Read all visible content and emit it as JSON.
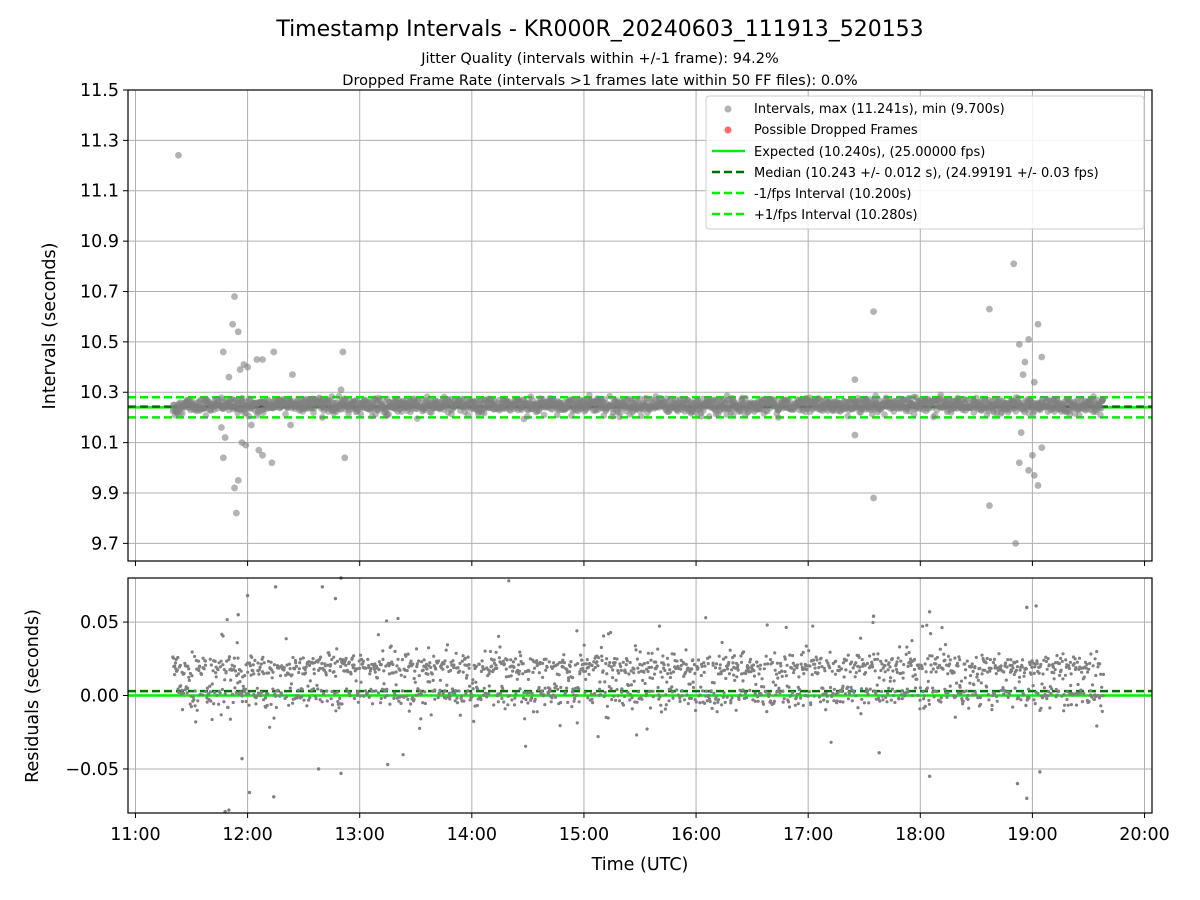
{
  "figure": {
    "title": "Timestamp Intervals - KR000R_20240603_111913_520153",
    "subtitle_line1": "Jitter Quality (intervals within +/-1 frame): 94.2%",
    "subtitle_line2": "Dropped Frame Rate (intervals >1 frames late within 50 FF files): 0.0%",
    "colors": {
      "points": "#808080",
      "dropped": "#ff4d4d",
      "expected": "#00ee00",
      "median": "#007000",
      "interval_lines": "#00ee00",
      "grid": "#b0b0b0"
    }
  },
  "chart_data": [
    {
      "type": "scatter",
      "panel": "intervals",
      "xlabel": "",
      "ylabel": "Intervals (seconds)",
      "x_range": [
        "10:56",
        "20:04"
      ],
      "ylim": [
        9.63,
        11.5
      ],
      "y_ticks": [
        "9.7",
        "9.9",
        "10.1",
        "10.3",
        "10.5",
        "10.7",
        "10.9",
        "11.1",
        "11.3",
        "11.5"
      ],
      "grid": true,
      "legend_placement": "upper right",
      "legend": [
        "Intervals, max (11.241s), min (9.700s)",
        "Possible Dropped Frames",
        "Expected (10.240s), (25.00000 fps)",
        "Median (10.243 +/- 0.012 s), (24.99191 +/- 0.03 fps)",
        "-1/fps Interval (10.200s)",
        "+1/fps Interval (10.280s)"
      ],
      "reference_lines": {
        "expected": 10.24,
        "median": 10.243,
        "minus_one_fps": 10.2,
        "plus_one_fps": 10.28
      },
      "series": [
        {
          "name": "Intervals, max (11.241s), min (9.700s)",
          "band": {
            "x_start": "11:20",
            "x_end": "19:38",
            "center": 10.243,
            "typical_spread": 0.03
          },
          "outliers": [
            {
              "x": "11:23",
              "y": 11.241
            },
            {
              "x": "11:47",
              "y": 10.46
            },
            {
              "x": "11:50",
              "y": 10.36
            },
            {
              "x": "11:52",
              "y": 10.57
            },
            {
              "x": "11:53",
              "y": 10.68
            },
            {
              "x": "11:55",
              "y": 10.54
            },
            {
              "x": "11:56",
              "y": 10.39
            },
            {
              "x": "11:58",
              "y": 10.41
            },
            {
              "x": "12:00",
              "y": 10.4
            },
            {
              "x": "12:05",
              "y": 10.43
            },
            {
              "x": "12:08",
              "y": 10.43
            },
            {
              "x": "12:14",
              "y": 10.46
            },
            {
              "x": "12:24",
              "y": 10.37
            },
            {
              "x": "11:46",
              "y": 10.16
            },
            {
              "x": "11:48",
              "y": 10.12
            },
            {
              "x": "11:47",
              "y": 10.04
            },
            {
              "x": "11:53",
              "y": 9.92
            },
            {
              "x": "11:54",
              "y": 9.82
            },
            {
              "x": "11:55",
              "y": 9.95
            },
            {
              "x": "11:57",
              "y": 10.1
            },
            {
              "x": "11:59",
              "y": 10.09
            },
            {
              "x": "12:02",
              "y": 10.17
            },
            {
              "x": "12:06",
              "y": 10.07
            },
            {
              "x": "12:08",
              "y": 10.05
            },
            {
              "x": "12:13",
              "y": 10.02
            },
            {
              "x": "12:23",
              "y": 10.17
            },
            {
              "x": "12:40",
              "y": 10.2
            },
            {
              "x": "12:51",
              "y": 10.46
            },
            {
              "x": "12:52",
              "y": 10.04
            },
            {
              "x": "12:50",
              "y": 10.31
            },
            {
              "x": "17:25",
              "y": 10.35
            },
            {
              "x": "17:25",
              "y": 10.13
            },
            {
              "x": "17:35",
              "y": 10.62
            },
            {
              "x": "17:35",
              "y": 9.88
            },
            {
              "x": "18:37",
              "y": 10.63
            },
            {
              "x": "18:37",
              "y": 9.85
            },
            {
              "x": "18:50",
              "y": 10.81
            },
            {
              "x": "18:51",
              "y": 9.7
            },
            {
              "x": "18:53",
              "y": 10.49
            },
            {
              "x": "18:58",
              "y": 10.51
            },
            {
              "x": "19:03",
              "y": 10.57
            },
            {
              "x": "19:05",
              "y": 10.44
            },
            {
              "x": "19:01",
              "y": 10.34
            },
            {
              "x": "18:56",
              "y": 10.42
            },
            {
              "x": "18:55",
              "y": 10.37
            },
            {
              "x": "18:53",
              "y": 10.02
            },
            {
              "x": "18:58",
              "y": 9.99
            },
            {
              "x": "19:01",
              "y": 9.97
            },
            {
              "x": "19:03",
              "y": 9.93
            },
            {
              "x": "19:00",
              "y": 10.05
            },
            {
              "x": "19:05",
              "y": 10.08
            },
            {
              "x": "18:54",
              "y": 10.14
            }
          ]
        },
        {
          "name": "Possible Dropped Frames",
          "points": []
        }
      ]
    },
    {
      "type": "scatter",
      "panel": "residuals",
      "xlabel": "Time (UTC)",
      "ylabel": "Residuals (seconds)",
      "x_ticks": [
        "11:00",
        "12:00",
        "13:00",
        "14:00",
        "15:00",
        "16:00",
        "17:00",
        "18:00",
        "19:00",
        "20:00"
      ],
      "ylim": [
        -0.08,
        0.08
      ],
      "y_ticks": [
        "−0.05",
        "0.00",
        "0.05"
      ],
      "grid": true,
      "reference_lines": {
        "expected": 0.0,
        "median": 0.003
      },
      "series": [
        {
          "name": "",
          "bands": [
            {
              "center": 0.02,
              "spread": 0.004,
              "weight": 0.5
            },
            {
              "center": 0.0,
              "spread": 0.004,
              "weight": 0.35
            },
            {
              "center": 0.01,
              "spread": 0.018,
              "weight": 0.15
            }
          ],
          "x_start": "11:20",
          "x_end": "19:38",
          "outliers": [
            {
              "x": "11:55",
              "y": 0.055
            },
            {
              "x": "12:00",
              "y": 0.068
            },
            {
              "x": "12:15",
              "y": 0.074
            },
            {
              "x": "12:40",
              "y": 0.074
            },
            {
              "x": "12:50",
              "y": 0.08
            },
            {
              "x": "12:47",
              "y": 0.066
            },
            {
              "x": "11:57",
              "y": -0.043
            },
            {
              "x": "11:48",
              "y": -0.079
            },
            {
              "x": "11:50",
              "y": -0.078
            },
            {
              "x": "12:01",
              "y": -0.066
            },
            {
              "x": "12:14",
              "y": -0.069
            },
            {
              "x": "12:38",
              "y": -0.05
            },
            {
              "x": "12:50",
              "y": -0.053
            },
            {
              "x": "13:15",
              "y": -0.047
            },
            {
              "x": "18:52",
              "y": -0.06
            },
            {
              "x": "18:57",
              "y": -0.07
            },
            {
              "x": "19:04",
              "y": -0.052
            },
            {
              "x": "18:57",
              "y": 0.06
            },
            {
              "x": "19:02",
              "y": 0.061
            },
            {
              "x": "17:38",
              "y": -0.039
            },
            {
              "x": "18:05",
              "y": -0.055
            },
            {
              "x": "18:05",
              "y": 0.057
            },
            {
              "x": "17:35",
              "y": 0.054
            }
          ]
        }
      ]
    }
  ]
}
